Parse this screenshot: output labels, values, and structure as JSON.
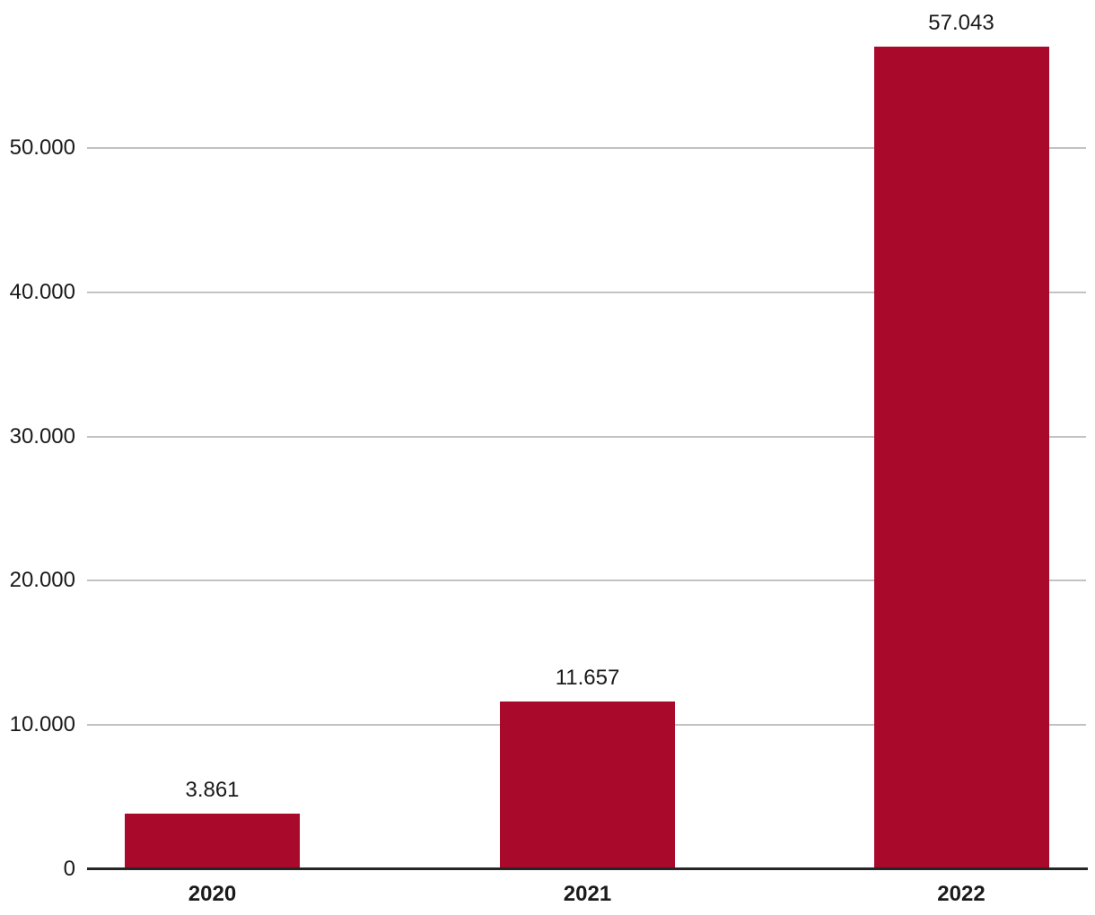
{
  "chart_data": {
    "type": "bar",
    "title": "",
    "xlabel": "",
    "ylabel": "",
    "categories": [
      "2020",
      "2021",
      "2022"
    ],
    "values": [
      3861,
      11657,
      57043
    ],
    "value_labels": [
      "3.861",
      "11.657",
      "57.043"
    ],
    "yticks": [
      0,
      10000,
      20000,
      30000,
      40000,
      50000
    ],
    "ytick_labels": [
      "0",
      "10.000",
      "20.000",
      "30.000",
      "40.000",
      "50.000"
    ],
    "ylim": [
      0,
      57500
    ],
    "grid": "horizontal",
    "legend": "none",
    "colors": {
      "bar": "#A90A2C",
      "gridline": "#C2C2C2",
      "axis": "#262626",
      "text": "#1A1A1A"
    }
  }
}
